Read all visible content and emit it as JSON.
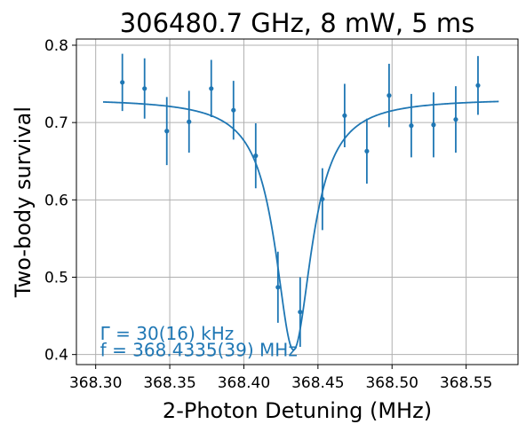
{
  "chart_data": {
    "type": "scatter",
    "title": "306480.7 GHz, 8 mW, 5 ms",
    "xlabel": "2-Photon Detuning (MHz)",
    "ylabel": "Two-body survival",
    "xlim": [
      368.287,
      368.585
    ],
    "ylim": [
      0.387,
      0.808
    ],
    "x_ticks": [
      "368.30",
      "368.35",
      "368.40",
      "368.45",
      "368.50",
      "368.55"
    ],
    "y_ticks": [
      "0.4",
      "0.5",
      "0.6",
      "0.7",
      "0.8"
    ],
    "grid": true,
    "color": "#1f77b4",
    "series": [
      {
        "kind": "errorbar",
        "x": [
          368.318,
          368.333,
          368.348,
          368.363,
          368.378,
          368.393,
          368.408,
          368.423,
          368.438,
          368.453,
          368.468,
          368.483,
          368.498,
          368.513,
          368.528,
          368.543,
          368.558
        ],
        "y": [
          0.752,
          0.744,
          0.689,
          0.701,
          0.744,
          0.716,
          0.657,
          0.487,
          0.455,
          0.601,
          0.709,
          0.663,
          0.735,
          0.696,
          0.697,
          0.704,
          0.748
        ],
        "yerr": [
          0.037,
          0.039,
          0.044,
          0.04,
          0.037,
          0.038,
          0.042,
          0.046,
          0.045,
          0.04,
          0.041,
          0.042,
          0.041,
          0.041,
          0.042,
          0.043,
          0.038
        ]
      },
      {
        "kind": "fit",
        "model": "lorentzian",
        "x_range": [
          368.305,
          368.572
        ],
        "baseline": 0.731,
        "depth": 0.325,
        "center": 368.4335,
        "fwhm": 0.03
      }
    ],
    "annotations": [
      {
        "text": "Γ = 30(16) kHz",
        "x": 368.303,
        "y": 0.419
      },
      {
        "text": "f = 368.4335(39) MHz",
        "x": 368.303,
        "y": 0.398
      }
    ]
  }
}
